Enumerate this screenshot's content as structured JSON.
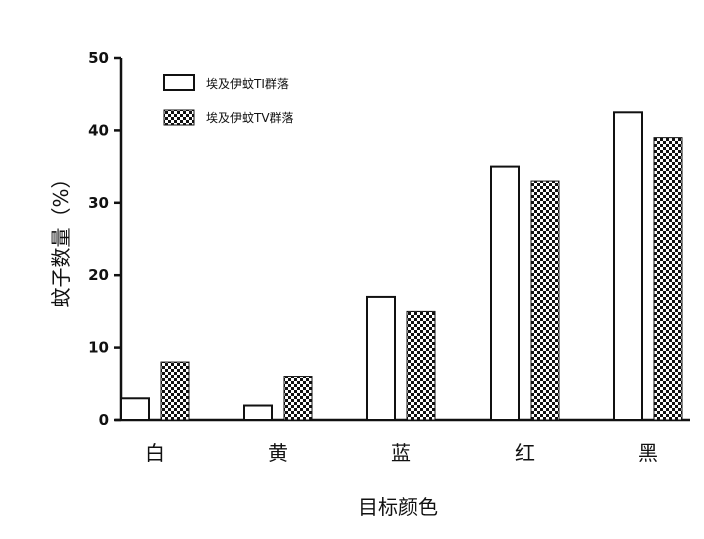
{
  "chart_data": {
    "type": "bar",
    "categories": [
      "白",
      "黄",
      "蓝",
      "红",
      "黑"
    ],
    "series": [
      {
        "name": "埃及伊蚊TI群落",
        "values": [
          3,
          2,
          17,
          35,
          42.5
        ],
        "pattern": "hollow"
      },
      {
        "name": "埃及伊蚊TV群落",
        "values": [
          8,
          6,
          15,
          33,
          39
        ],
        "pattern": "checker"
      }
    ],
    "xlabel": "目标颜色",
    "ylabel": "蚊子数量（%）",
    "ylim": [
      0,
      50
    ],
    "yticks": [
      0,
      10,
      20,
      30,
      40,
      50
    ],
    "legend": "top-left",
    "grid": false,
    "colors": {
      "ink": "#111111",
      "background": "#ffffff"
    }
  }
}
